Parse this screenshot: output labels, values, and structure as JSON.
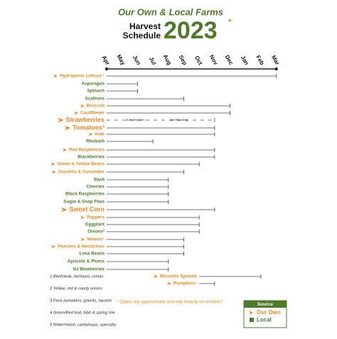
{
  "chart_data": {
    "type": "gantt",
    "title": "Our Own & Local Farms",
    "subtitle": [
      "Harvest",
      "Schedule"
    ],
    "year": "2023",
    "year_mark": "*",
    "categories": [
      "Apr",
      "May",
      "Jun",
      "Jul",
      "Aug",
      "Sep",
      "Oct",
      "Nov",
      "Dec",
      "Jan",
      "Feb",
      "Mar"
    ],
    "colors": {
      "own": "#e8891e",
      "local": "#4e7a2a"
    },
    "items": [
      {
        "label": "Hydroponic Lettuce ¹",
        "source": "own",
        "start": 0,
        "end": 11
      },
      {
        "label": "Asparagus",
        "source": "local",
        "start": 0,
        "end": 2
      },
      {
        "label": "Spinach",
        "source": "local",
        "start": 0,
        "end": 2
      },
      {
        "label": "Scallions",
        "source": "local",
        "start": 0,
        "end": 5
      },
      {
        "label": "Broccoli",
        "source": "own",
        "start": 0,
        "end": 8
      },
      {
        "label": "Cauliflower",
        "source": "own",
        "start": 0,
        "end": 8
      },
      {
        "label": "Strawberries",
        "source": "own",
        "start": 0,
        "end": 7,
        "emphasis": true,
        "notes": [
          "June bearers",
          "Everbearing"
        ]
      },
      {
        "label": "Tomatoes³",
        "source": "own",
        "start": 0,
        "end": 7,
        "emphasis": true
      },
      {
        "label": "Kale",
        "source": "own",
        "start": 0,
        "end": 7
      },
      {
        "label": "Rhubarb",
        "source": "local",
        "start": 0,
        "end": 3
      },
      {
        "label": "Red Raspberries",
        "source": "own",
        "start": 0,
        "end": 7
      },
      {
        "label": "Blackberries",
        "source": "local",
        "start": 0,
        "end": 7
      },
      {
        "label": "Green & Yellow Beans",
        "source": "own",
        "start": 0,
        "end": 6
      },
      {
        "label": "Zucchini & Cucumber",
        "source": "own",
        "start": 0,
        "end": 5
      },
      {
        "label": "Basil",
        "source": "local",
        "start": 0,
        "end": 4
      },
      {
        "label": "Cherries",
        "source": "local",
        "start": 0,
        "end": 4
      },
      {
        "label": "Black Raspberries",
        "source": "local",
        "start": 0,
        "end": 4
      },
      {
        "label": "Sugar & Snap Peas",
        "source": "local",
        "start": 0,
        "end": 4
      },
      {
        "label": "Sweet Corn",
        "source": "own",
        "start": 0,
        "end": 7,
        "emphasis": true
      },
      {
        "label": "Peppers",
        "source": "own",
        "start": 0,
        "end": 6
      },
      {
        "label": "Eggplant",
        "source": "local",
        "start": 0,
        "end": 6
      },
      {
        "label": "Onions²",
        "source": "local",
        "start": 0,
        "end": 6
      },
      {
        "label": "Melons⁵",
        "source": "own",
        "start": 0,
        "end": 5
      },
      {
        "label": "Peaches & Nectarines",
        "source": "own",
        "start": 0,
        "end": 5
      },
      {
        "label": "Lima Beans",
        "source": "local",
        "start": 0,
        "end": 5
      },
      {
        "label": "Apricots & Plums",
        "source": "local",
        "start": 0,
        "end": 4
      },
      {
        "label": "NJ Blueberries",
        "source": "local",
        "start": 0,
        "end": 4
      },
      {
        "label": "Brussels Sprouts",
        "source": "own",
        "start": 6,
        "end": 10
      },
      {
        "label": "Pumpkins⁴",
        "source": "own",
        "start": 6,
        "end": 7
      }
    ],
    "footnotes": [
      "1 Beefsteak, heirloom, romas",
      "2 Yellow, red & candy onions",
      "3 Face pumpkins, gourds, squash",
      "4 Green/Red leaf, bibb & spring mix",
      "5 Watermelon, cantaloupe, specialty"
    ],
    "note": "*  Dates are approximate and rely heavily on weather!",
    "legend": {
      "title": "Source",
      "own": "Our Own",
      "local": "Local"
    }
  }
}
